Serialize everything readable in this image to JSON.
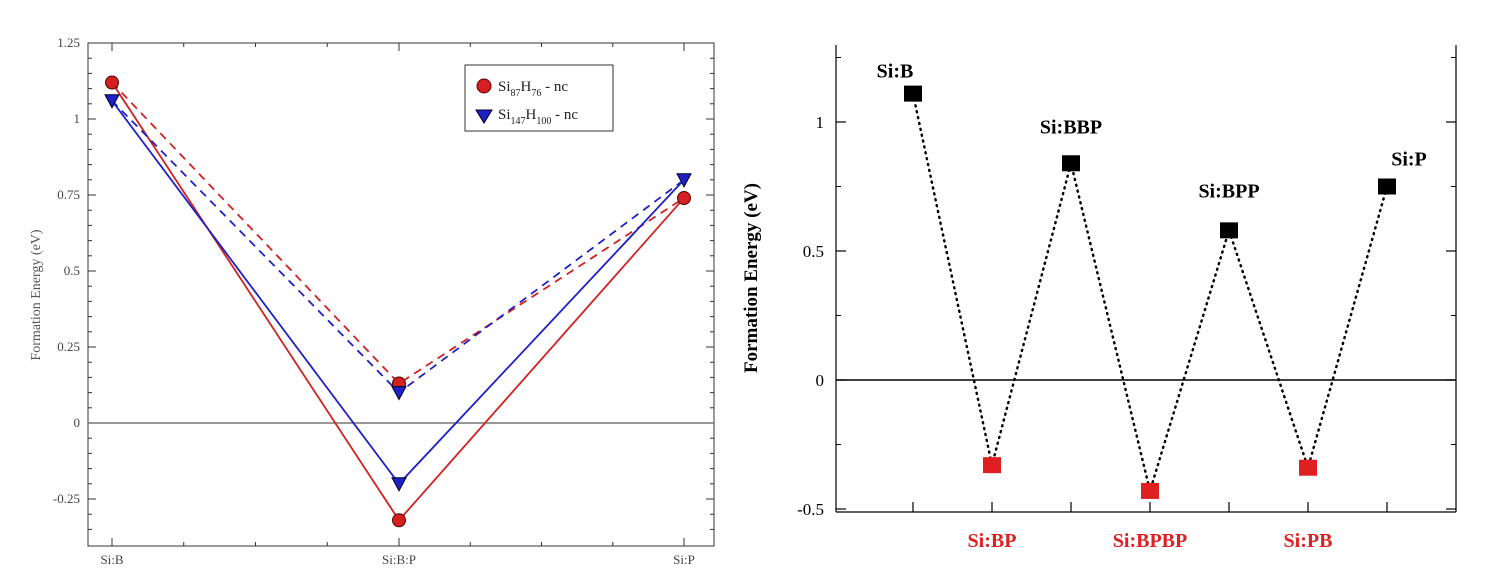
{
  "chart_data": [
    {
      "type": "line",
      "title": "",
      "xlabel": "",
      "ylabel": "Formation Energy (eV)",
      "categories": [
        "Si:B",
        "Si:B:P",
        "Si:P"
      ],
      "ylim": [
        -0.4,
        1.25
      ],
      "yticks": [
        "1.25",
        "1",
        "0.75",
        "0.5",
        "0.25",
        "0",
        "-0.25"
      ],
      "ytick_values": [
        1.25,
        1.0,
        0.75,
        0.5,
        0.25,
        0,
        -0.25
      ],
      "zero_line": true,
      "series": [
        {
          "name": "Si87H76 - nc",
          "legend_base": "Si",
          "legend_sub1": "87",
          "legend_mid": "H",
          "legend_sub2": "76",
          "legend_tail": " - nc",
          "color": "#d42020",
          "marker": "circle",
          "line_solid": [
            1.12,
            -0.32,
            0.74
          ],
          "line_dashed": [
            1.12,
            0.13,
            0.74
          ]
        },
        {
          "name": "Si147H100 - nc",
          "legend_base": "Si",
          "legend_sub1": "147",
          "legend_mid": "H",
          "legend_sub2": "100",
          "legend_tail": " - nc",
          "color": "#2020c8",
          "marker": "triangle-down",
          "line_solid": [
            1.06,
            -0.2,
            0.8
          ],
          "line_dashed": [
            1.06,
            0.1,
            0.8
          ]
        }
      ],
      "legend_position": "top-right"
    },
    {
      "type": "line",
      "title": "",
      "xlabel": "",
      "ylabel": "Formation Energy (eV)",
      "ylim": [
        -0.5,
        1.3
      ],
      "yticks": [
        "1",
        "0.5",
        "0",
        "-0.5"
      ],
      "ytick_values": [
        1,
        0.5,
        0,
        -0.5
      ],
      "zero_line": true,
      "points": [
        {
          "label": "Si:B",
          "value": 1.11,
          "color": "#000000",
          "label_side": "top"
        },
        {
          "label": "Si:BP",
          "value": -0.33,
          "color": "#e02020",
          "label_side": "bottom"
        },
        {
          "label": "Si:BBP",
          "value": 0.84,
          "color": "#000000",
          "label_side": "top"
        },
        {
          "label": "Si:BPBP",
          "value": -0.43,
          "color": "#e02020",
          "label_side": "bottom"
        },
        {
          "label": "Si:BPP",
          "value": 0.58,
          "color": "#000000",
          "label_side": "top"
        },
        {
          "label": "Si:PB",
          "value": -0.34,
          "color": "#e02020",
          "label_side": "bottom"
        },
        {
          "label": "Si:P",
          "value": 0.75,
          "color": "#000000",
          "label_side": "top"
        }
      ],
      "line_style": "dotted"
    }
  ]
}
